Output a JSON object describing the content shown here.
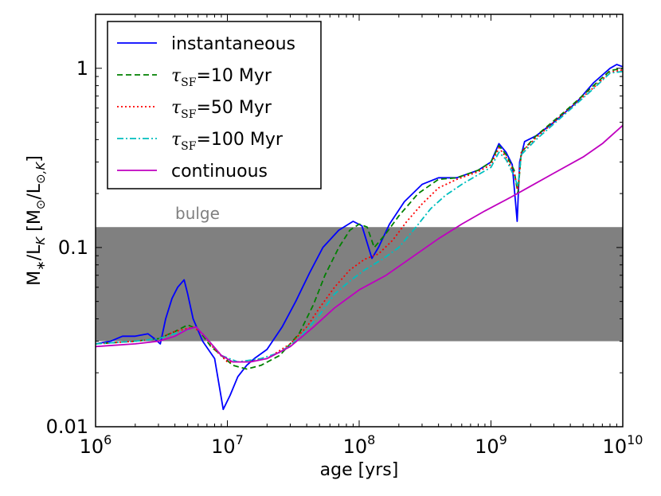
{
  "chart_data": {
    "type": "line",
    "title": "",
    "xlabel": "age [yrs]",
    "ylabel": "M∗/L_K [M⊙/L⊙,K]",
    "xscale": "log",
    "yscale": "log",
    "xlim": [
      1000000,
      10000000000
    ],
    "ylim": [
      0.01,
      2.0
    ],
    "x_tick_labels": [
      {
        "value": 1000000,
        "base": "10",
        "exp": "6"
      },
      {
        "value": 10000000,
        "base": "10",
        "exp": "7"
      },
      {
        "value": 100000000,
        "base": "10",
        "exp": "8"
      },
      {
        "value": 1000000000,
        "base": "10",
        "exp": "9"
      },
      {
        "value": 10000000000,
        "base": "10",
        "exp": "10"
      }
    ],
    "y_tick_labels": [
      {
        "value": 0.01,
        "label": "0.01"
      },
      {
        "value": 0.1,
        "label": "0.1"
      },
      {
        "value": 1,
        "label": "1"
      }
    ],
    "band": {
      "label": "bulge",
      "y_min": 0.03,
      "y_max": 0.13,
      "color": "#808080"
    },
    "legend_position": "top-left",
    "series": [
      {
        "name": "instantaneous",
        "color": "#0000ff",
        "dash": "solid",
        "points": [
          [
            1000000.0,
            0.029
          ],
          [
            1300000.0,
            0.03
          ],
          [
            1600000.0,
            0.032
          ],
          [
            2000000.0,
            0.032
          ],
          [
            2500000.0,
            0.033
          ],
          [
            2800000.0,
            0.031
          ],
          [
            3100000.0,
            0.029
          ],
          [
            3400000.0,
            0.04
          ],
          [
            3800000.0,
            0.052
          ],
          [
            4200000.0,
            0.06
          ],
          [
            4700000.0,
            0.066
          ],
          [
            5000000.0,
            0.055
          ],
          [
            5500000.0,
            0.04
          ],
          [
            6500000.0,
            0.03
          ],
          [
            8000000.0,
            0.024
          ],
          [
            9300000.0,
            0.0125
          ],
          [
            10500000.0,
            0.015
          ],
          [
            12000000.0,
            0.019
          ],
          [
            14000000.0,
            0.022
          ],
          [
            16000000.0,
            0.024
          ],
          [
            20000000.0,
            0.027
          ],
          [
            26000000.0,
            0.036
          ],
          [
            33000000.0,
            0.05
          ],
          [
            42000000.0,
            0.072
          ],
          [
            53000000.0,
            0.1
          ],
          [
            70000000.0,
            0.125
          ],
          [
            90000000.0,
            0.14
          ],
          [
            105000000.0,
            0.132
          ],
          [
            125000000.0,
            0.087
          ],
          [
            140000000.0,
            0.1
          ],
          [
            170000000.0,
            0.135
          ],
          [
            220000000.0,
            0.18
          ],
          [
            300000000.0,
            0.225
          ],
          [
            400000000.0,
            0.245
          ],
          [
            550000000.0,
            0.245
          ],
          [
            800000000.0,
            0.27
          ],
          [
            1000000000.0,
            0.3
          ],
          [
            1150000000.0,
            0.38
          ],
          [
            1300000000.0,
            0.34
          ],
          [
            1450000000.0,
            0.29
          ],
          [
            1580000000.0,
            0.14
          ],
          [
            1650000000.0,
            0.3
          ],
          [
            1800000000.0,
            0.39
          ],
          [
            2200000000.0,
            0.42
          ],
          [
            3000000000.0,
            0.5
          ],
          [
            4500000000.0,
            0.65
          ],
          [
            6000000000.0,
            0.83
          ],
          [
            8000000000.0,
            1.0
          ],
          [
            9000000000.0,
            1.05
          ],
          [
            10000000000.0,
            1.02
          ]
        ]
      },
      {
        "name": "τ_SF=10 Myr",
        "color": "#008000",
        "dash": "dashed",
        "points": [
          [
            1000000.0,
            0.029
          ],
          [
            2000000.0,
            0.03
          ],
          [
            3000000.0,
            0.031
          ],
          [
            4000000.0,
            0.034
          ],
          [
            5000000.0,
            0.037
          ],
          [
            6000000.0,
            0.035
          ],
          [
            7500000.0,
            0.028
          ],
          [
            9000000.0,
            0.025
          ],
          [
            11000000.0,
            0.022
          ],
          [
            14000000.0,
            0.021
          ],
          [
            18000000.0,
            0.022
          ],
          [
            25000000.0,
            0.025
          ],
          [
            35000000.0,
            0.033
          ],
          [
            45000000.0,
            0.048
          ],
          [
            55000000.0,
            0.07
          ],
          [
            70000000.0,
            0.1
          ],
          [
            85000000.0,
            0.125
          ],
          [
            100000000.0,
            0.135
          ],
          [
            115000000.0,
            0.13
          ],
          [
            130000000.0,
            0.1
          ],
          [
            160000000.0,
            0.12
          ],
          [
            200000000.0,
            0.15
          ],
          [
            280000000.0,
            0.2
          ],
          [
            400000000.0,
            0.24
          ],
          [
            550000000.0,
            0.245
          ],
          [
            800000000.0,
            0.27
          ],
          [
            1000000000.0,
            0.3
          ],
          [
            1150000000.0,
            0.37
          ],
          [
            1300000000.0,
            0.33
          ],
          [
            1500000000.0,
            0.27
          ],
          [
            1600000000.0,
            0.2
          ],
          [
            1700000000.0,
            0.34
          ],
          [
            2200000000.0,
            0.42
          ],
          [
            4000000000.0,
            0.61
          ],
          [
            6000000000.0,
            0.8
          ],
          [
            8000000000.0,
            0.97
          ],
          [
            10000000000.0,
            1.0
          ]
        ]
      },
      {
        "name": "τ_SF=50 Myr",
        "color": "#ff0000",
        "dash": "dotted",
        "points": [
          [
            1000000.0,
            0.029
          ],
          [
            2000000.0,
            0.03
          ],
          [
            3000000.0,
            0.031
          ],
          [
            4000000.0,
            0.034
          ],
          [
            5500000.0,
            0.036
          ],
          [
            6500000.0,
            0.033
          ],
          [
            8000000.0,
            0.027
          ],
          [
            10000000.0,
            0.023
          ],
          [
            14000000.0,
            0.023
          ],
          [
            20000000.0,
            0.024
          ],
          [
            30000000.0,
            0.029
          ],
          [
            40000000.0,
            0.036
          ],
          [
            50000000.0,
            0.046
          ],
          [
            65000000.0,
            0.06
          ],
          [
            85000000.0,
            0.075
          ],
          [
            110000000.0,
            0.086
          ],
          [
            140000000.0,
            0.092
          ],
          [
            180000000.0,
            0.11
          ],
          [
            230000000.0,
            0.14
          ],
          [
            300000000.0,
            0.175
          ],
          [
            400000000.0,
            0.215
          ],
          [
            550000000.0,
            0.24
          ],
          [
            800000000.0,
            0.265
          ],
          [
            1000000000.0,
            0.29
          ],
          [
            1150000000.0,
            0.36
          ],
          [
            1300000000.0,
            0.32
          ],
          [
            1500000000.0,
            0.26
          ],
          [
            1600000000.0,
            0.21
          ],
          [
            1700000000.0,
            0.34
          ],
          [
            2200000000.0,
            0.41
          ],
          [
            4000000000.0,
            0.6
          ],
          [
            6000000000.0,
            0.78
          ],
          [
            8000000000.0,
            0.95
          ],
          [
            10000000000.0,
            0.98
          ]
        ]
      },
      {
        "name": "τ_SF=100 Myr",
        "color": "#00bfbf",
        "dash": "dashdot",
        "points": [
          [
            1000000.0,
            0.029
          ],
          [
            2000000.0,
            0.03
          ],
          [
            3000000.0,
            0.031
          ],
          [
            4500000.0,
            0.034
          ],
          [
            5800000.0,
            0.036
          ],
          [
            7000000.0,
            0.031
          ],
          [
            9000000.0,
            0.025
          ],
          [
            12000000.0,
            0.023
          ],
          [
            18000000.0,
            0.024
          ],
          [
            25000000.0,
            0.026
          ],
          [
            35000000.0,
            0.031
          ],
          [
            50000000.0,
            0.042
          ],
          [
            65000000.0,
            0.055
          ],
          [
            85000000.0,
            0.065
          ],
          [
            110000000.0,
            0.075
          ],
          [
            150000000.0,
            0.086
          ],
          [
            200000000.0,
            0.1
          ],
          [
            270000000.0,
            0.13
          ],
          [
            350000000.0,
            0.165
          ],
          [
            450000000.0,
            0.195
          ],
          [
            600000000.0,
            0.225
          ],
          [
            800000000.0,
            0.255
          ],
          [
            1000000000.0,
            0.28
          ],
          [
            1150000000.0,
            0.34
          ],
          [
            1300000000.0,
            0.31
          ],
          [
            1500000000.0,
            0.25
          ],
          [
            1600000000.0,
            0.22
          ],
          [
            1700000000.0,
            0.33
          ],
          [
            2200000000.0,
            0.4
          ],
          [
            4000000000.0,
            0.59
          ],
          [
            6000000000.0,
            0.77
          ],
          [
            8000000000.0,
            0.94
          ],
          [
            10000000000.0,
            0.96
          ]
        ]
      },
      {
        "name": "continuous",
        "color": "#bf00bf",
        "dash": "solid",
        "points": [
          [
            1000000.0,
            0.028
          ],
          [
            2000000.0,
            0.029
          ],
          [
            3000000.0,
            0.03
          ],
          [
            4000000.0,
            0.032
          ],
          [
            5000000.0,
            0.035
          ],
          [
            5800000.0,
            0.036
          ],
          [
            7000000.0,
            0.031
          ],
          [
            9000000.0,
            0.025
          ],
          [
            11000000.0,
            0.023
          ],
          [
            15000000.0,
            0.023
          ],
          [
            20000000.0,
            0.024
          ],
          [
            30000000.0,
            0.028
          ],
          [
            45000000.0,
            0.036
          ],
          [
            65000000.0,
            0.046
          ],
          [
            100000000.0,
            0.058
          ],
          [
            160000000.0,
            0.07
          ],
          [
            250000000.0,
            0.088
          ],
          [
            400000000.0,
            0.112
          ],
          [
            600000000.0,
            0.135
          ],
          [
            900000000.0,
            0.16
          ],
          [
            1400000000.0,
            0.19
          ],
          [
            2000000000.0,
            0.22
          ],
          [
            3000000000.0,
            0.26
          ],
          [
            5000000000.0,
            0.32
          ],
          [
            7000000000.0,
            0.38
          ],
          [
            10000000000.0,
            0.48
          ]
        ]
      }
    ]
  }
}
